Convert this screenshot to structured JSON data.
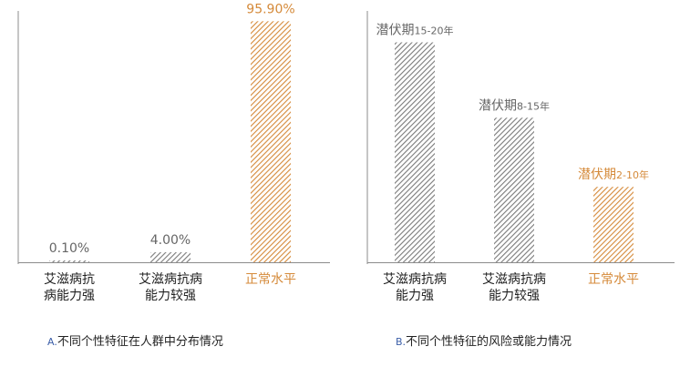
{
  "highlight_color": "#d58a3a",
  "normal_color": "#666666",
  "chart_data": [
    {
      "type": "bar",
      "title": "",
      "categories": [
        [
          "艾滋病抗",
          "病能力强"
        ],
        [
          "艾滋病抗病",
          "能力较强"
        ],
        [
          "正常水平"
        ]
      ],
      "values": [
        0.1,
        4.0,
        95.9
      ],
      "data_labels": [
        "0.10%",
        "4.00%",
        "95.90%"
      ],
      "highlight_index": 2,
      "ylim": [
        0,
        100
      ]
    },
    {
      "type": "bar",
      "title": "",
      "categories": [
        [
          "艾滋病抗病",
          "能力强"
        ],
        [
          "艾滋病抗病",
          "能力较强"
        ],
        [
          "正常水平"
        ]
      ],
      "values": [
        17.5,
        11.5,
        6
      ],
      "data_labels": [
        {
          "prefix": "潜伏期",
          "range": "15-20年"
        },
        {
          "prefix": "潜伏期",
          "range": "8-15年"
        },
        {
          "prefix": "潜伏期",
          "range": "2-10年"
        }
      ],
      "highlight_index": 2,
      "ylim": [
        0,
        20
      ]
    }
  ],
  "captions": {
    "a_letter": "A.",
    "a_text": "不同个性特征在人群中分布情况",
    "b_letter": "B.",
    "b_text": "不同个性特征的风险或能力情况"
  }
}
